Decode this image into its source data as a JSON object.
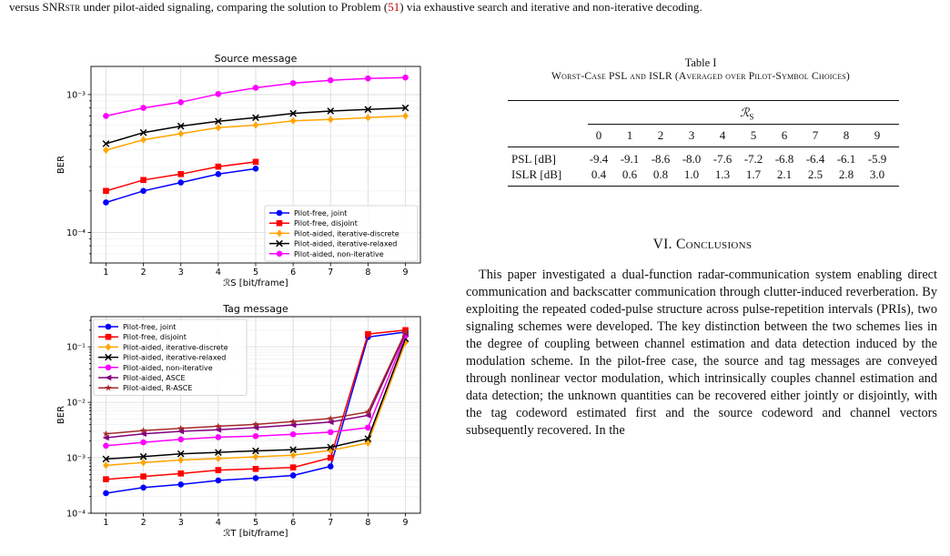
{
  "caption_top": {
    "part1": "versus SNR",
    "part1_sub": "STR",
    "part2": " under pilot-aided signaling, comparing the solution to Problem (",
    "ref": "51",
    "part3": ") via exhaustive search and iterative and non-iterative decoding."
  },
  "table": {
    "title": "Table I",
    "subtitle": "Worst-Case PSL and ISLR (Averaged over Pilot-Symbol Choices)",
    "header_symbol": "ℛ",
    "header_sub": "S",
    "columns": [
      "0",
      "1",
      "2",
      "3",
      "4",
      "5",
      "6",
      "7",
      "8",
      "9"
    ],
    "rows": [
      {
        "label": "PSL [dB]",
        "values": [
          "-9.4",
          "-9.1",
          "-8.6",
          "-8.0",
          "-7.6",
          "-7.2",
          "-6.8",
          "-6.4",
          "-6.1",
          "-5.9"
        ]
      },
      {
        "label": "ISLR [dB]",
        "values": [
          "0.4",
          "0.6",
          "0.8",
          "1.0",
          "1.3",
          "1.7",
          "2.1",
          "2.5",
          "2.8",
          "3.0"
        ]
      }
    ]
  },
  "section": {
    "number": "VI.",
    "title": "Conclusions"
  },
  "paragraph": "This paper investigated a dual-function radar-communication system enabling direct communication and backscatter communication through clutter-induced reverberation. By exploiting the repeated coded-pulse structure across pulse-repetition intervals (PRIs), two signaling schemes were developed. The key distinction between the two schemes lies in the degree of coupling between channel estimation and data detection induced by the modulation scheme. In the pilot-free case, the source and tag messages are conveyed through nonlinear vector modulation, which intrinsically couples channel estimation and data detection; the unknown quantities can be recovered either jointly or disjointly, with the tag codeword estimated first and the source codeword and channel vectors subsequently recovered. In the",
  "chart_data": [
    {
      "type": "line",
      "title": "Source message",
      "xlabel": "ℛS [bit/frame]",
      "ylabel": "BER",
      "yscale": "log",
      "xlim": [
        0.6,
        9.4
      ],
      "ylim": [
        6e-05,
        0.0016
      ],
      "x_ticks": [
        "1",
        "2",
        "3",
        "4",
        "5",
        "6",
        "7",
        "8",
        "9"
      ],
      "y_ticks": [
        "10⁻⁴",
        "10⁻³"
      ],
      "grid": true,
      "legend_placement": "lower-right",
      "series": [
        {
          "name": "Pilot-free, joint",
          "color": "#0000ff",
          "marker": "circle",
          "x": [
            1,
            2,
            3,
            4,
            5
          ],
          "y": [
            0.000165,
            0.0002,
            0.00023,
            0.000265,
            0.00029
          ]
        },
        {
          "name": "Pilot-free, disjoint",
          "color": "#ff0000",
          "marker": "square",
          "x": [
            1,
            2,
            3,
            4,
            5
          ],
          "y": [
            0.0002,
            0.00024,
            0.000265,
            0.0003,
            0.000325
          ]
        },
        {
          "name": "Pilot-aided, iterative-discrete",
          "color": "#ffa500",
          "marker": "diamond",
          "x": [
            1,
            2,
            3,
            4,
            5,
            6,
            7,
            8,
            9
          ],
          "y": [
            0.000395,
            0.00047,
            0.00052,
            0.000575,
            0.0006,
            0.000645,
            0.00066,
            0.00068,
            0.0007
          ]
        },
        {
          "name": "Pilot-aided, iterative-relaxed",
          "color": "#000000",
          "marker": "x",
          "x": [
            1,
            2,
            3,
            4,
            5,
            6,
            7,
            8,
            9
          ],
          "y": [
            0.00044,
            0.00053,
            0.00059,
            0.00064,
            0.00068,
            0.00073,
            0.00076,
            0.00078,
            0.0008
          ]
        },
        {
          "name": "Pilot-aided, non-iterative",
          "color": "#ff00ff",
          "marker": "circle",
          "x": [
            1,
            2,
            3,
            4,
            5,
            6,
            7,
            8,
            9
          ],
          "y": [
            0.0007,
            0.0008,
            0.00088,
            0.00101,
            0.00112,
            0.00121,
            0.00127,
            0.00131,
            0.00133
          ]
        }
      ]
    },
    {
      "type": "line",
      "title": "Tag message",
      "xlabel": "ℛT [bit/frame]",
      "ylabel": "BER",
      "yscale": "log",
      "xlim": [
        0.6,
        9.4
      ],
      "ylim": [
        0.0001,
        0.35
      ],
      "x_ticks": [
        "1",
        "2",
        "3",
        "4",
        "5",
        "6",
        "7",
        "8",
        "9"
      ],
      "y_ticks": [
        "10⁻⁴",
        "10⁻³",
        "10⁻²",
        "10⁻¹"
      ],
      "grid": true,
      "legend_placement": "upper-left",
      "series": [
        {
          "name": "Pilot-free, joint",
          "color": "#0000ff",
          "marker": "circle",
          "x": [
            1,
            2,
            3,
            4,
            5,
            6,
            7,
            8,
            9
          ],
          "y": [
            0.00023,
            0.00029,
            0.00033,
            0.00039,
            0.00043,
            0.00048,
            0.0007,
            0.15,
            0.185
          ]
        },
        {
          "name": "Pilot-free, disjoint",
          "color": "#ff0000",
          "marker": "square",
          "x": [
            1,
            2,
            3,
            4,
            5,
            6,
            7,
            8,
            9
          ],
          "y": [
            0.00041,
            0.00046,
            0.00052,
            0.0006,
            0.00063,
            0.00067,
            0.001,
            0.17,
            0.2
          ]
        },
        {
          "name": "Pilot-aided, iterative-discrete",
          "color": "#ffa500",
          "marker": "diamond",
          "x": [
            1,
            2,
            3,
            4,
            5,
            6,
            7,
            8,
            9
          ],
          "y": [
            0.00073,
            0.00082,
            0.00091,
            0.00097,
            0.00104,
            0.00111,
            0.00136,
            0.00185,
            0.12
          ]
        },
        {
          "name": "Pilot-aided, iterative-relaxed",
          "color": "#000000",
          "marker": "x",
          "x": [
            1,
            2,
            3,
            4,
            5,
            6,
            7,
            8,
            9
          ],
          "y": [
            0.00095,
            0.00105,
            0.00118,
            0.00125,
            0.00133,
            0.0014,
            0.00155,
            0.0022,
            0.14
          ]
        },
        {
          "name": "Pilot-aided, non-iterative",
          "color": "#ff00ff",
          "marker": "circle",
          "x": [
            1,
            2,
            3,
            4,
            5,
            6,
            7,
            8,
            9
          ],
          "y": [
            0.00165,
            0.0019,
            0.00215,
            0.00235,
            0.00245,
            0.00265,
            0.0029,
            0.0035,
            0.16
          ]
        },
        {
          "name": "Pilot-aided, ASCE",
          "color": "#800080",
          "marker": "triangle-left",
          "x": [
            1,
            2,
            3,
            4,
            5,
            6,
            7,
            8,
            9
          ],
          "y": [
            0.0023,
            0.0027,
            0.003,
            0.0032,
            0.0035,
            0.0039,
            0.0044,
            0.0058,
            0.175
          ]
        },
        {
          "name": "Pilot-aided, R-ASCE",
          "color": "#a52a2a",
          "marker": "star",
          "x": [
            1,
            2,
            3,
            4,
            5,
            6,
            7,
            8,
            9
          ],
          "y": [
            0.0027,
            0.0031,
            0.0034,
            0.0037,
            0.004,
            0.0045,
            0.0051,
            0.0067,
            0.185
          ]
        }
      ]
    }
  ]
}
